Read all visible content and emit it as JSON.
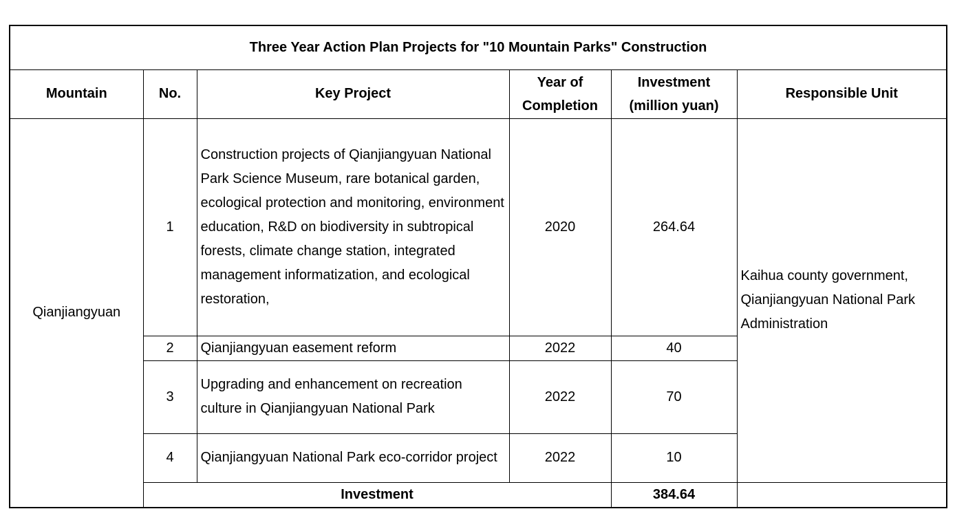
{
  "table": {
    "title": "Three Year Action Plan Projects for \"10 Mountain Parks\" Construction",
    "header": [
      "Mountain",
      "No.",
      "Key Project",
      "Year of Completion",
      "Investment (million yuan)",
      "Responsible Unit"
    ],
    "mountain": "Qianjiangyuan",
    "responsible_unit": "Kaihua county government, Qianjiangyuan National Park Administration",
    "rows": [
      [
        1,
        "Construction projects of Qianjiangyuan National Park Science Museum, rare botanical garden, ecological protection and monitoring, environment education, R&D on biodiversity in subtropical forests, climate change station, integrated management informatization, and ecological restoration,",
        2020,
        264.64
      ],
      [
        2,
        "Qianjiangyuan easement reform",
        2022,
        40
      ],
      [
        3,
        "Upgrading and enhancement on recreation culture in Qianjiangyuan National Park",
        2022,
        70
      ],
      [
        4,
        "Qianjiangyuan National Park eco-corridor project",
        2022,
        10
      ]
    ],
    "total_label": "Investment",
    "total_value": 384.64
  }
}
